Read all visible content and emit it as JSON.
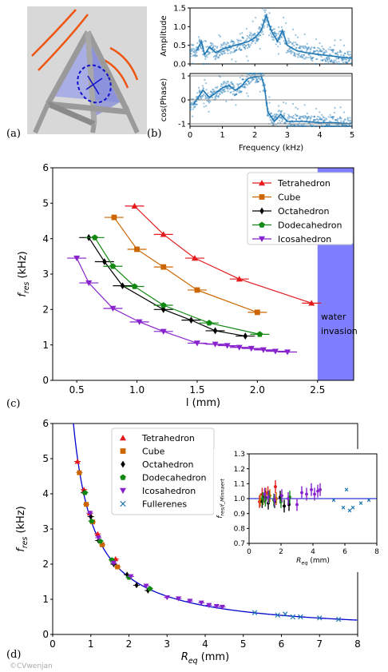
{
  "panel_labels": [
    "(a)",
    "(b)",
    "(c)",
    "(d)"
  ],
  "watermark": "©CVwenjan",
  "colors": {
    "Tetrahedron": "#e41a1c",
    "Cube": "#cc6600",
    "Octahedron": "#000000",
    "Dodecahedron": "#118811",
    "Icosahedron": "#8822cc",
    "Fullerenes": "#1f77b4",
    "fit": "#0000cc",
    "water": "#7070ff",
    "spectrum": "#1f77b4"
  },
  "chart_data": [
    {
      "id": "b-amplitude",
      "type": "scatter",
      "title": "",
      "xlabel": "",
      "ylabel": "Amplitude",
      "xlim": [
        0,
        5
      ],
      "ylim": [
        0,
        1.5
      ],
      "xticks": [
        "0",
        "1",
        "2",
        "3",
        "4",
        "5"
      ],
      "yticks": [
        "0.0",
        "0.5",
        "1.0",
        "1.5"
      ],
      "series": [
        {
          "values": [
            [
              0.2,
              0.35
            ],
            [
              0.35,
              0.6
            ],
            [
              0.45,
              0.25
            ],
            [
              0.6,
              0.45
            ],
            [
              0.8,
              0.3
            ],
            [
              1.0,
              0.4
            ],
            [
              1.2,
              0.45
            ],
            [
              1.4,
              0.5
            ],
            [
              1.6,
              0.55
            ],
            [
              1.8,
              0.6
            ],
            [
              2.0,
              0.7
            ],
            [
              2.2,
              0.9
            ],
            [
              2.35,
              1.3
            ],
            [
              2.5,
              0.9
            ],
            [
              2.7,
              0.6
            ],
            [
              2.85,
              0.9
            ],
            [
              3.0,
              0.5
            ],
            [
              3.3,
              0.35
            ],
            [
              3.6,
              0.3
            ],
            [
              4.0,
              0.25
            ],
            [
              4.5,
              0.2
            ],
            [
              5.0,
              0.15
            ]
          ]
        }
      ]
    },
    {
      "id": "b-phase",
      "type": "scatter",
      "title": "",
      "xlabel": "Frequency (kHz)",
      "ylabel": "cos(Phase)",
      "xlim": [
        0,
        5
      ],
      "ylim": [
        -1.1,
        1.1
      ],
      "xticks": [
        "0",
        "1",
        "2",
        "3",
        "4",
        "5"
      ],
      "yticks": [
        "-1",
        "0",
        "1"
      ],
      "series": [
        {
          "values": [
            [
              0.1,
              -0.2
            ],
            [
              0.4,
              0.4
            ],
            [
              0.6,
              0.1
            ],
            [
              0.8,
              0.3
            ],
            [
              1.0,
              0.5
            ],
            [
              1.2,
              0.6
            ],
            [
              1.4,
              0.4
            ],
            [
              1.6,
              0.6
            ],
            [
              1.8,
              0.9
            ],
            [
              2.0,
              0.95
            ],
            [
              2.2,
              1.0
            ],
            [
              2.3,
              0.5
            ],
            [
              2.4,
              -0.5
            ],
            [
              2.6,
              -0.9
            ],
            [
              2.8,
              -0.6
            ],
            [
              3.0,
              -0.9
            ],
            [
              3.5,
              -0.9
            ],
            [
              4.0,
              -0.95
            ],
            [
              4.5,
              -0.95
            ],
            [
              5.0,
              -1.0
            ]
          ]
        }
      ]
    },
    {
      "id": "c",
      "type": "line",
      "title": "",
      "xlabel": "l (mm)",
      "ylabel": "f_res (kHz)",
      "xlim": [
        0.3,
        2.8
      ],
      "ylim": [
        0,
        6
      ],
      "xticks": [
        "0.5",
        "1.0",
        "1.5",
        "2.0",
        "2.5"
      ],
      "yticks": [
        "0",
        "1",
        "2",
        "3",
        "4",
        "5",
        "6"
      ],
      "legend": "top-right",
      "annotation": [
        "water",
        "invasion"
      ],
      "shaded_region": [
        2.5,
        2.8
      ],
      "series": [
        {
          "name": "Tetrahedron",
          "marker": "triangle-up",
          "points": [
            [
              0.98,
              4.92
            ],
            [
              1.22,
              4.12
            ],
            [
              1.48,
              3.45
            ],
            [
              1.85,
              2.86
            ],
            [
              2.45,
              2.18
            ]
          ]
        },
        {
          "name": "Cube",
          "marker": "square",
          "points": [
            [
              0.81,
              4.6
            ],
            [
              1.0,
              3.7
            ],
            [
              1.22,
              3.2
            ],
            [
              1.5,
              2.55
            ],
            [
              2.0,
              1.92
            ]
          ]
        },
        {
          "name": "Octahedron",
          "marker": "diamond",
          "points": [
            [
              0.6,
              4.03
            ],
            [
              0.73,
              3.35
            ],
            [
              0.88,
              2.67
            ],
            [
              1.22,
              2.0
            ],
            [
              1.45,
              1.7
            ],
            [
              1.65,
              1.4
            ],
            [
              1.9,
              1.25
            ]
          ]
        },
        {
          "name": "Dodecahedron",
          "marker": "pentagon",
          "points": [
            [
              0.65,
              4.03
            ],
            [
              0.8,
              3.22
            ],
            [
              0.98,
              2.65
            ],
            [
              1.22,
              2.12
            ],
            [
              1.6,
              1.62
            ],
            [
              2.02,
              1.3
            ]
          ]
        },
        {
          "name": "Icosahedron",
          "marker": "triangle-down",
          "points": [
            [
              0.5,
              3.45
            ],
            [
              0.6,
              2.75
            ],
            [
              0.8,
              2.03
            ],
            [
              1.02,
              1.65
            ],
            [
              1.22,
              1.38
            ],
            [
              1.5,
              1.05
            ],
            [
              1.65,
              1.02
            ],
            [
              1.75,
              0.98
            ],
            [
              1.85,
              0.93
            ],
            [
              1.95,
              0.9
            ],
            [
              2.05,
              0.86
            ],
            [
              2.15,
              0.82
            ],
            [
              2.25,
              0.8
            ]
          ]
        }
      ]
    },
    {
      "id": "d",
      "type": "scatter",
      "title": "",
      "xlabel": "R_eq (mm)",
      "ylabel": "f_res (kHz)",
      "xlim": [
        0,
        8
      ],
      "ylim": [
        0,
        6
      ],
      "xticks": [
        "0",
        "1",
        "2",
        "3",
        "4",
        "5",
        "6",
        "7",
        "8"
      ],
      "yticks": [
        "0",
        "1",
        "2",
        "3",
        "4",
        "5",
        "6"
      ],
      "legend": "top-center",
      "fit": "f_Minnaert = 3.26 / R_eq",
      "series": [
        {
          "name": "Tetrahedron",
          "marker": "triangle-up",
          "points": [
            [
              0.65,
              4.92
            ],
            [
              0.82,
              4.12
            ],
            [
              0.97,
              3.45
            ],
            [
              1.18,
              2.86
            ],
            [
              1.65,
              2.15
            ]
          ]
        },
        {
          "name": "Cube",
          "marker": "square",
          "points": [
            [
              0.7,
              4.6
            ],
            [
              0.88,
              3.7
            ],
            [
              1.05,
              3.2
            ],
            [
              1.3,
              2.55
            ],
            [
              1.7,
              1.92
            ]
          ]
        },
        {
          "name": "Octahedron",
          "marker": "diamond",
          "points": [
            [
              0.82,
              4.03
            ],
            [
              1.0,
              3.35
            ],
            [
              1.2,
              2.67
            ],
            [
              1.6,
              2.0
            ],
            [
              1.95,
              1.7
            ],
            [
              2.2,
              1.4
            ],
            [
              2.5,
              1.25
            ]
          ]
        },
        {
          "name": "Dodecahedron",
          "marker": "pentagon",
          "points": [
            [
              0.85,
              4.03
            ],
            [
              1.02,
              3.22
            ],
            [
              1.25,
              2.65
            ],
            [
              1.55,
              2.12
            ],
            [
              2.0,
              1.62
            ],
            [
              2.55,
              1.3
            ]
          ]
        },
        {
          "name": "Icosahedron",
          "marker": "triangle-down",
          "points": [
            [
              0.98,
              3.45
            ],
            [
              1.2,
              2.75
            ],
            [
              1.6,
              2.03
            ],
            [
              2.05,
              1.65
            ],
            [
              2.45,
              1.38
            ],
            [
              3.0,
              1.05
            ],
            [
              3.3,
              1.02
            ],
            [
              3.6,
              0.95
            ],
            [
              3.9,
              0.9
            ],
            [
              4.1,
              0.83
            ],
            [
              4.3,
              0.8
            ],
            [
              4.45,
              0.78
            ]
          ]
        },
        {
          "name": "Fullerenes",
          "marker": "x",
          "points": [
            [
              5.3,
              0.62
            ],
            [
              5.9,
              0.55
            ],
            [
              6.1,
              0.58
            ],
            [
              6.3,
              0.5
            ],
            [
              6.5,
              0.5
            ],
            [
              7.0,
              0.47
            ],
            [
              7.5,
              0.43
            ]
          ]
        }
      ]
    },
    {
      "id": "d-inset",
      "type": "scatter",
      "title": "",
      "xlabel": "R_eq (mm)",
      "ylabel": "f_res/f_Minnaert",
      "xlim": [
        0,
        8
      ],
      "ylim": [
        0.7,
        1.3
      ],
      "xticks": [
        "0",
        "2",
        "4",
        "6",
        "8"
      ],
      "yticks": [
        "0.7",
        "0.8",
        "0.9",
        "1.0",
        "1.1",
        "1.2",
        "1.3"
      ],
      "reference_line": 1.0,
      "series": [
        {
          "name": "Tetrahedron",
          "points": [
            [
              0.65,
              0.98
            ],
            [
              0.82,
              1.03
            ],
            [
              0.97,
              1.02
            ],
            [
              1.18,
              1.04
            ],
            [
              1.65,
              1.08
            ]
          ]
        },
        {
          "name": "Cube",
          "points": [
            [
              0.7,
              0.99
            ],
            [
              0.88,
              1.0
            ],
            [
              1.05,
              1.03
            ],
            [
              1.3,
              1.02
            ],
            [
              1.7,
              1.0
            ]
          ]
        },
        {
          "name": "Octahedron",
          "points": [
            [
              0.82,
              0.98
            ],
            [
              1.0,
              1.01
            ],
            [
              1.2,
              0.97
            ],
            [
              1.6,
              0.98
            ],
            [
              1.95,
              1.01
            ],
            [
              2.2,
              0.95
            ],
            [
              2.5,
              0.96
            ]
          ]
        },
        {
          "name": "Dodecahedron",
          "points": [
            [
              0.85,
              1.0
            ],
            [
              1.02,
              0.99
            ],
            [
              1.25,
              1.01
            ],
            [
              1.55,
              0.99
            ],
            [
              2.0,
              0.98
            ],
            [
              2.55,
              1.01
            ]
          ]
        },
        {
          "name": "Icosahedron",
          "points": [
            [
              0.98,
              1.03
            ],
            [
              1.2,
              1.01
            ],
            [
              1.6,
              0.99
            ],
            [
              2.05,
              1.02
            ],
            [
              2.45,
              1.0
            ],
            [
              3.0,
              0.96
            ],
            [
              3.3,
              1.04
            ],
            [
              3.6,
              1.03
            ],
            [
              3.9,
              1.06
            ],
            [
              4.1,
              1.03
            ],
            [
              4.3,
              1.05
            ],
            [
              4.45,
              1.06
            ]
          ]
        },
        {
          "name": "Fullerenes",
          "points": [
            [
              5.3,
              0.99
            ],
            [
              5.9,
              0.94
            ],
            [
              6.1,
              1.06
            ],
            [
              6.3,
              0.92
            ],
            [
              6.5,
              0.94
            ],
            [
              7.0,
              0.97
            ],
            [
              7.5,
              0.99
            ]
          ]
        }
      ]
    }
  ]
}
